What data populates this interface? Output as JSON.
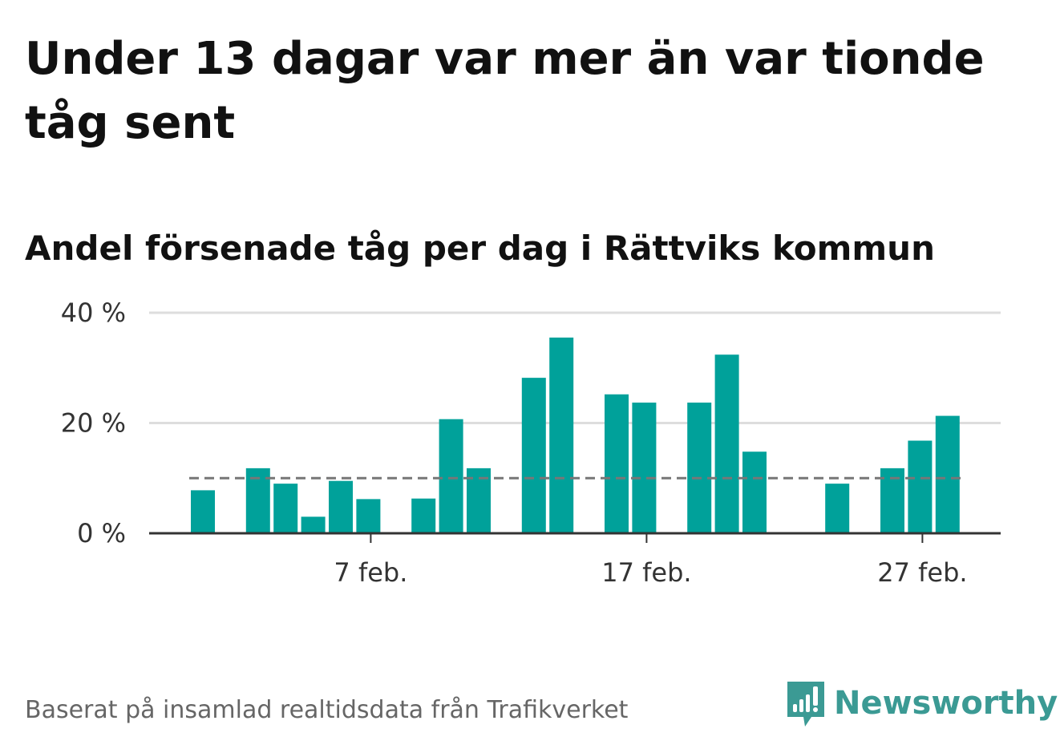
{
  "title": "Under 13 dagar var mer än var tionde tåg sent",
  "subtitle": "Andel försenade tåg per dag i Rättviks kommun",
  "footnote": "Baserat på insamlad realtidsdata från Trafikverket",
  "brand": {
    "name": "Newsworthy",
    "icon": "newsworthy-logo-icon"
  },
  "colors": {
    "bar": "#00a19a",
    "gridline": "#dddddd",
    "axis": "#333333",
    "threshold": "#777777",
    "brand": "#3b9a94"
  },
  "chart_data": {
    "type": "bar",
    "x_unit": "day",
    "categories": [
      "2023-02-01",
      "2023-02-02",
      "2023-02-03",
      "2023-02-04",
      "2023-02-05",
      "2023-02-06",
      "2023-02-07",
      "2023-02-08",
      "2023-02-09",
      "2023-02-10",
      "2023-02-11",
      "2023-02-12",
      "2023-02-13",
      "2023-02-14",
      "2023-02-15",
      "2023-02-16",
      "2023-02-17",
      "2023-02-18",
      "2023-02-19",
      "2023-02-20",
      "2023-02-21",
      "2023-02-22",
      "2023-02-23",
      "2023-02-24",
      "2023-02-25",
      "2023-02-26",
      "2023-02-27",
      "2023-02-28"
    ],
    "values": [
      7.8,
      null,
      11.8,
      9,
      3,
      9.5,
      6.2,
      null,
      6.3,
      20.7,
      11.8,
      null,
      28.2,
      35.5,
      null,
      25.2,
      23.7,
      null,
      23.7,
      32.4,
      14.8,
      null,
      null,
      9,
      null,
      11.8,
      16.8,
      21.3
    ],
    "threshold": 10,
    "ylim": [
      0,
      40
    ],
    "yticks": [
      0,
      20,
      40
    ],
    "ytick_labels": [
      "0 %",
      "20 %",
      "40 %"
    ],
    "xtick_labels": [
      {
        "date": "2023-02-07",
        "label": "7 feb."
      },
      {
        "date": "2023-02-17",
        "label": "17 feb."
      },
      {
        "date": "2023-02-27",
        "label": "27 feb."
      }
    ],
    "grid": true,
    "xlabel": "",
    "ylabel": ""
  }
}
